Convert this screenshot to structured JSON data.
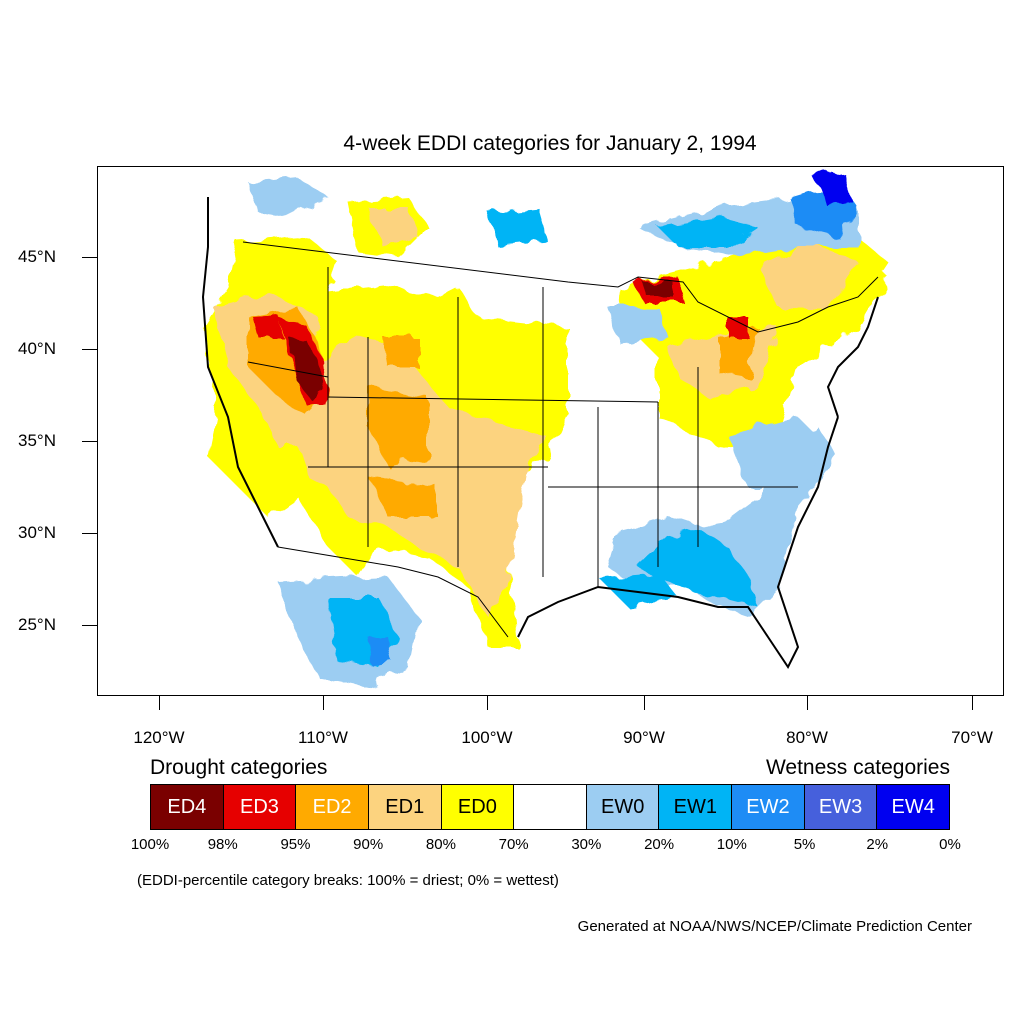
{
  "title": "4-week EDDI categories for January 2, 1994",
  "lat_labels": [
    "45°N",
    "40°N",
    "35°N",
    "30°N",
    "25°N"
  ],
  "lon_labels": [
    "120°W",
    "110°W",
    "100°W",
    "90°W",
    "80°W",
    "70°W"
  ],
  "legend": {
    "drought_heading": "Drought categories",
    "wetness_heading": "Wetness categories",
    "categories": [
      {
        "label": "ED4",
        "color": "#7a0000",
        "text_color": "#ffffff"
      },
      {
        "label": "ED3",
        "color": "#e60000",
        "text_color": "#ffffff"
      },
      {
        "label": "ED2",
        "color": "#ffaa00",
        "text_color": "#ffffff"
      },
      {
        "label": "ED1",
        "color": "#fcd37f",
        "text_color": "#000000"
      },
      {
        "label": "ED0",
        "color": "#ffff00",
        "text_color": "#000000"
      },
      {
        "label": "",
        "color": "#ffffff",
        "text_color": "#000000"
      },
      {
        "label": "EW0",
        "color": "#9ccdf2",
        "text_color": "#000000"
      },
      {
        "label": "EW1",
        "color": "#00b4f5",
        "text_color": "#000000"
      },
      {
        "label": "EW2",
        "color": "#1e8cf5",
        "text_color": "#ffffff"
      },
      {
        "label": "EW3",
        "color": "#4660dc",
        "text_color": "#ffffff"
      },
      {
        "label": "EW4",
        "color": "#0000f0",
        "text_color": "#ffffff"
      }
    ],
    "percentiles": [
      "100%",
      "98%",
      "95%",
      "90%",
      "80%",
      "70%",
      "30%",
      "20%",
      "10%",
      "5%",
      "2%",
      "0%"
    ]
  },
  "note": "(EDDI-percentile category breaks: 100% = driest; 0% = wettest)",
  "credit": "Generated at NOAA/NWS/NCEP/Climate Prediction Center"
}
